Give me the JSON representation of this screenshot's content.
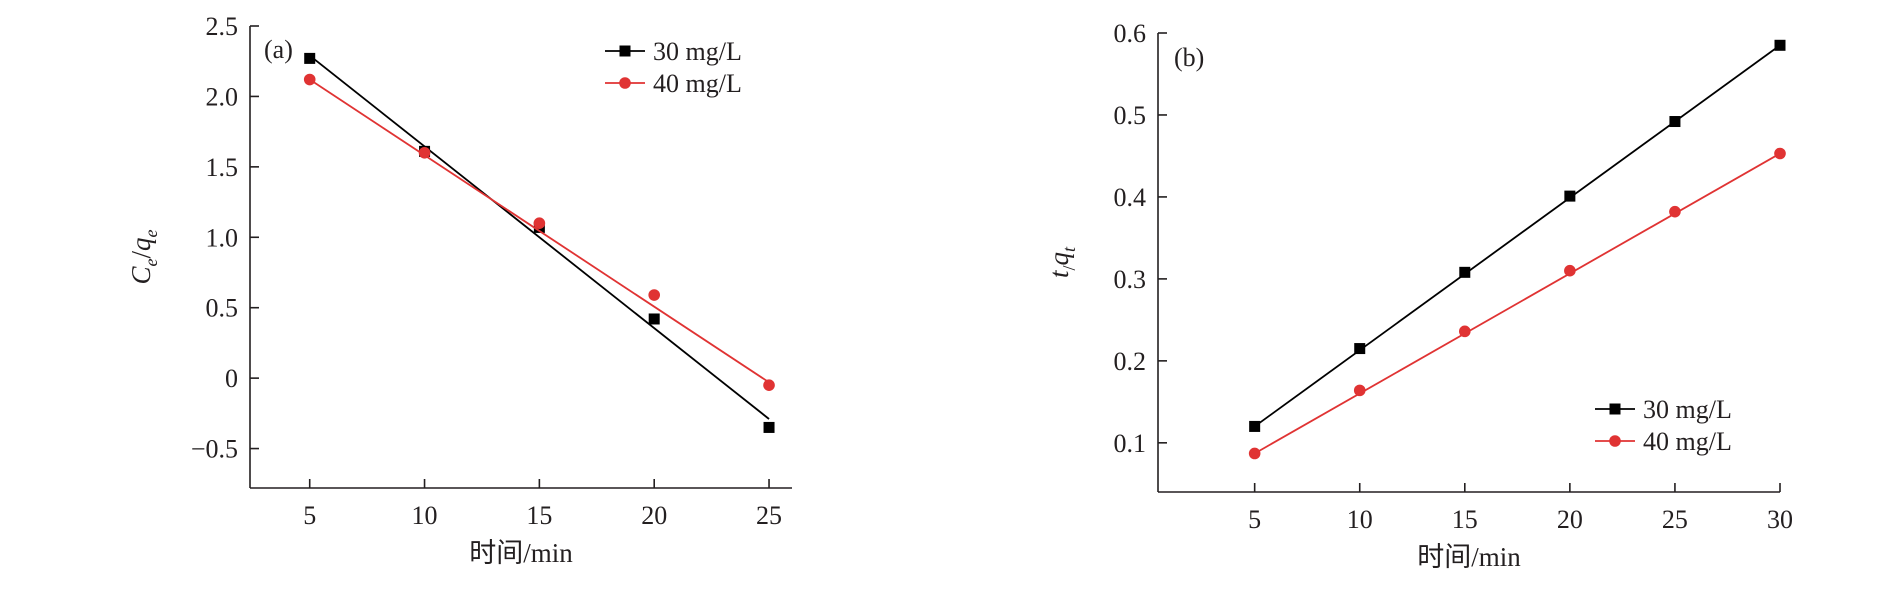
{
  "colors": {
    "series_30": "#000000",
    "series_40": "#e03333",
    "axis": "#231f20"
  },
  "xlabel": "时间/min",
  "chart_data": [
    {
      "type": "scatter",
      "panel_label": "(a)",
      "title": "",
      "xlabel": "时间/min",
      "ylabel_parts": [
        "C",
        "e",
        "/",
        "q",
        "e"
      ],
      "xlim": [
        2.4,
        26
      ],
      "ylim": [
        -0.78,
        2.5
      ],
      "xticks": [
        5,
        10,
        15,
        20,
        25
      ],
      "xtick_labels": [
        "5",
        "10",
        "15",
        "20",
        "25"
      ],
      "yticks": [
        -0.5,
        0,
        0.5,
        1.0,
        1.5,
        2.0,
        2.5
      ],
      "ytick_labels": [
        "−0.5",
        "0",
        "0.5",
        "1.0",
        "1.5",
        "2.0",
        "2.5"
      ],
      "legend_position": "top-right",
      "series": [
        {
          "name": "30 mg/L",
          "marker": "square",
          "color": "#000000",
          "x": [
            5,
            10,
            15,
            20,
            25
          ],
          "y": [
            2.27,
            1.61,
            1.07,
            0.42,
            -0.35
          ],
          "fit": {
            "x": [
              5,
              25
            ],
            "y": [
              2.29,
              -0.29
            ]
          }
        },
        {
          "name": "40 mg/L",
          "marker": "circle",
          "color": "#e03333",
          "x": [
            5,
            10,
            15,
            20,
            25
          ],
          "y": [
            2.12,
            1.6,
            1.1,
            0.59,
            -0.05
          ],
          "fit": {
            "x": [
              5,
              25
            ],
            "y": [
              2.12,
              -0.03
            ]
          }
        }
      ]
    },
    {
      "type": "scatter",
      "panel_label": "(b)",
      "title": "",
      "xlabel": "时间/min",
      "ylabel_parts": [
        "t",
        "/",
        "q",
        "t"
      ],
      "xlim": [
        0.4,
        30
      ],
      "ylim": [
        0.04,
        0.6
      ],
      "xticks": [
        5,
        10,
        15,
        20,
        25,
        30
      ],
      "xtick_labels": [
        "5",
        "10",
        "15",
        "20",
        "25",
        "30"
      ],
      "yticks": [
        0.1,
        0.2,
        0.3,
        0.4,
        0.5,
        0.6
      ],
      "ytick_labels": [
        "0.1",
        "0.2",
        "0.3",
        "0.4",
        "0.5",
        "0.6"
      ],
      "legend_position": "bottom-right",
      "series": [
        {
          "name": "30 mg/L",
          "marker": "square",
          "color": "#000000",
          "x": [
            5,
            10,
            15,
            20,
            25,
            30
          ],
          "y": [
            0.12,
            0.215,
            0.308,
            0.401,
            0.492,
            0.585
          ],
          "fit": {
            "x": [
              5,
              30
            ],
            "y": [
              0.12,
              0.585
            ]
          }
        },
        {
          "name": "40 mg/L",
          "marker": "circle",
          "color": "#e03333",
          "x": [
            5,
            10,
            15,
            20,
            25,
            30
          ],
          "y": [
            0.087,
            0.164,
            0.236,
            0.31,
            0.382,
            0.453
          ],
          "fit": {
            "x": [
              5,
              30
            ],
            "y": [
              0.087,
              0.453
            ]
          }
        }
      ]
    }
  ]
}
